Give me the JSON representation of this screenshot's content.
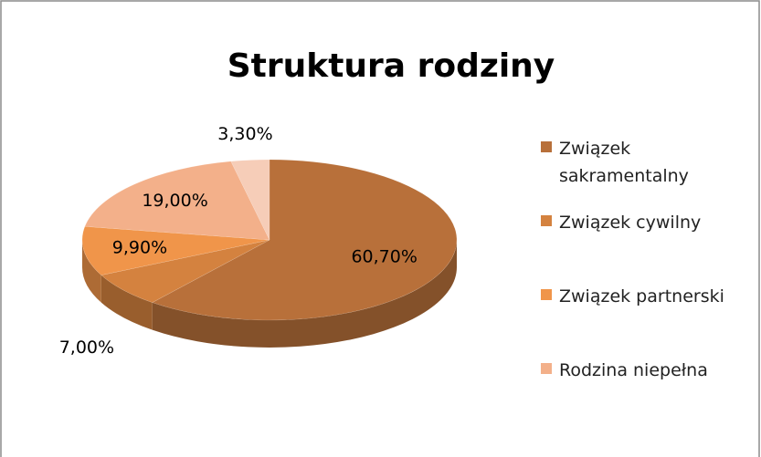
{
  "chart_data": {
    "type": "pie",
    "title": "Struktura rodziny",
    "categories": [
      "Związek sakramentalny",
      "Związek cywilny",
      "Związek partnerski",
      "Rodzina niepełna",
      null
    ],
    "values": [
      60.7,
      7.0,
      9.9,
      19.0,
      3.3
    ],
    "value_labels": [
      "60,70%",
      "7,00%",
      "9,90%",
      "19,00%",
      "3,30%"
    ],
    "colors": [
      "#b8703a",
      "#d4823f",
      "#f0954a",
      "#f3b08a",
      "#f6cdb8"
    ],
    "legend": "right"
  }
}
